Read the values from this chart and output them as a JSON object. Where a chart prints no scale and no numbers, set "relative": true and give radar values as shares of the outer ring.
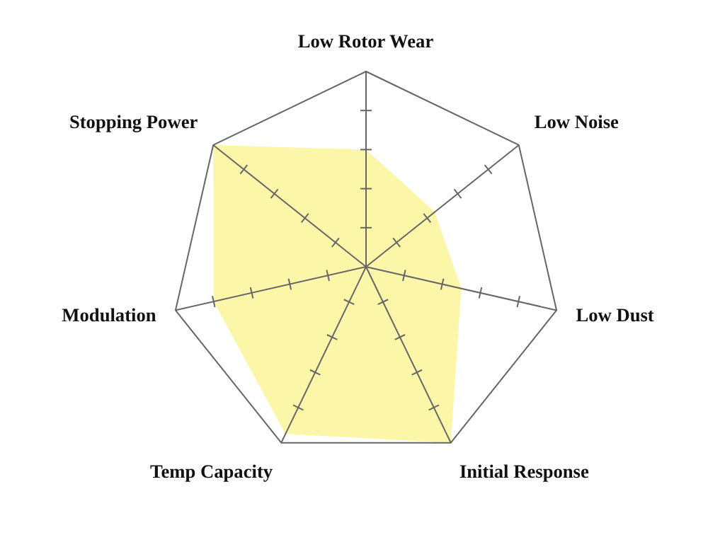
{
  "chart_data": {
    "type": "radar",
    "relative": true,
    "categories": [
      "Low Rotor Wear",
      "Low Noise",
      "Low Dust",
      "Initial Response",
      "Temp Capacity",
      "Modulation",
      "Stopping Power"
    ],
    "series": [
      {
        "color": "#fcf5a0",
        "values": [
          0.6,
          0.45,
          0.5,
          1.0,
          0.95,
          0.8,
          1.0
        ]
      }
    ]
  }
}
